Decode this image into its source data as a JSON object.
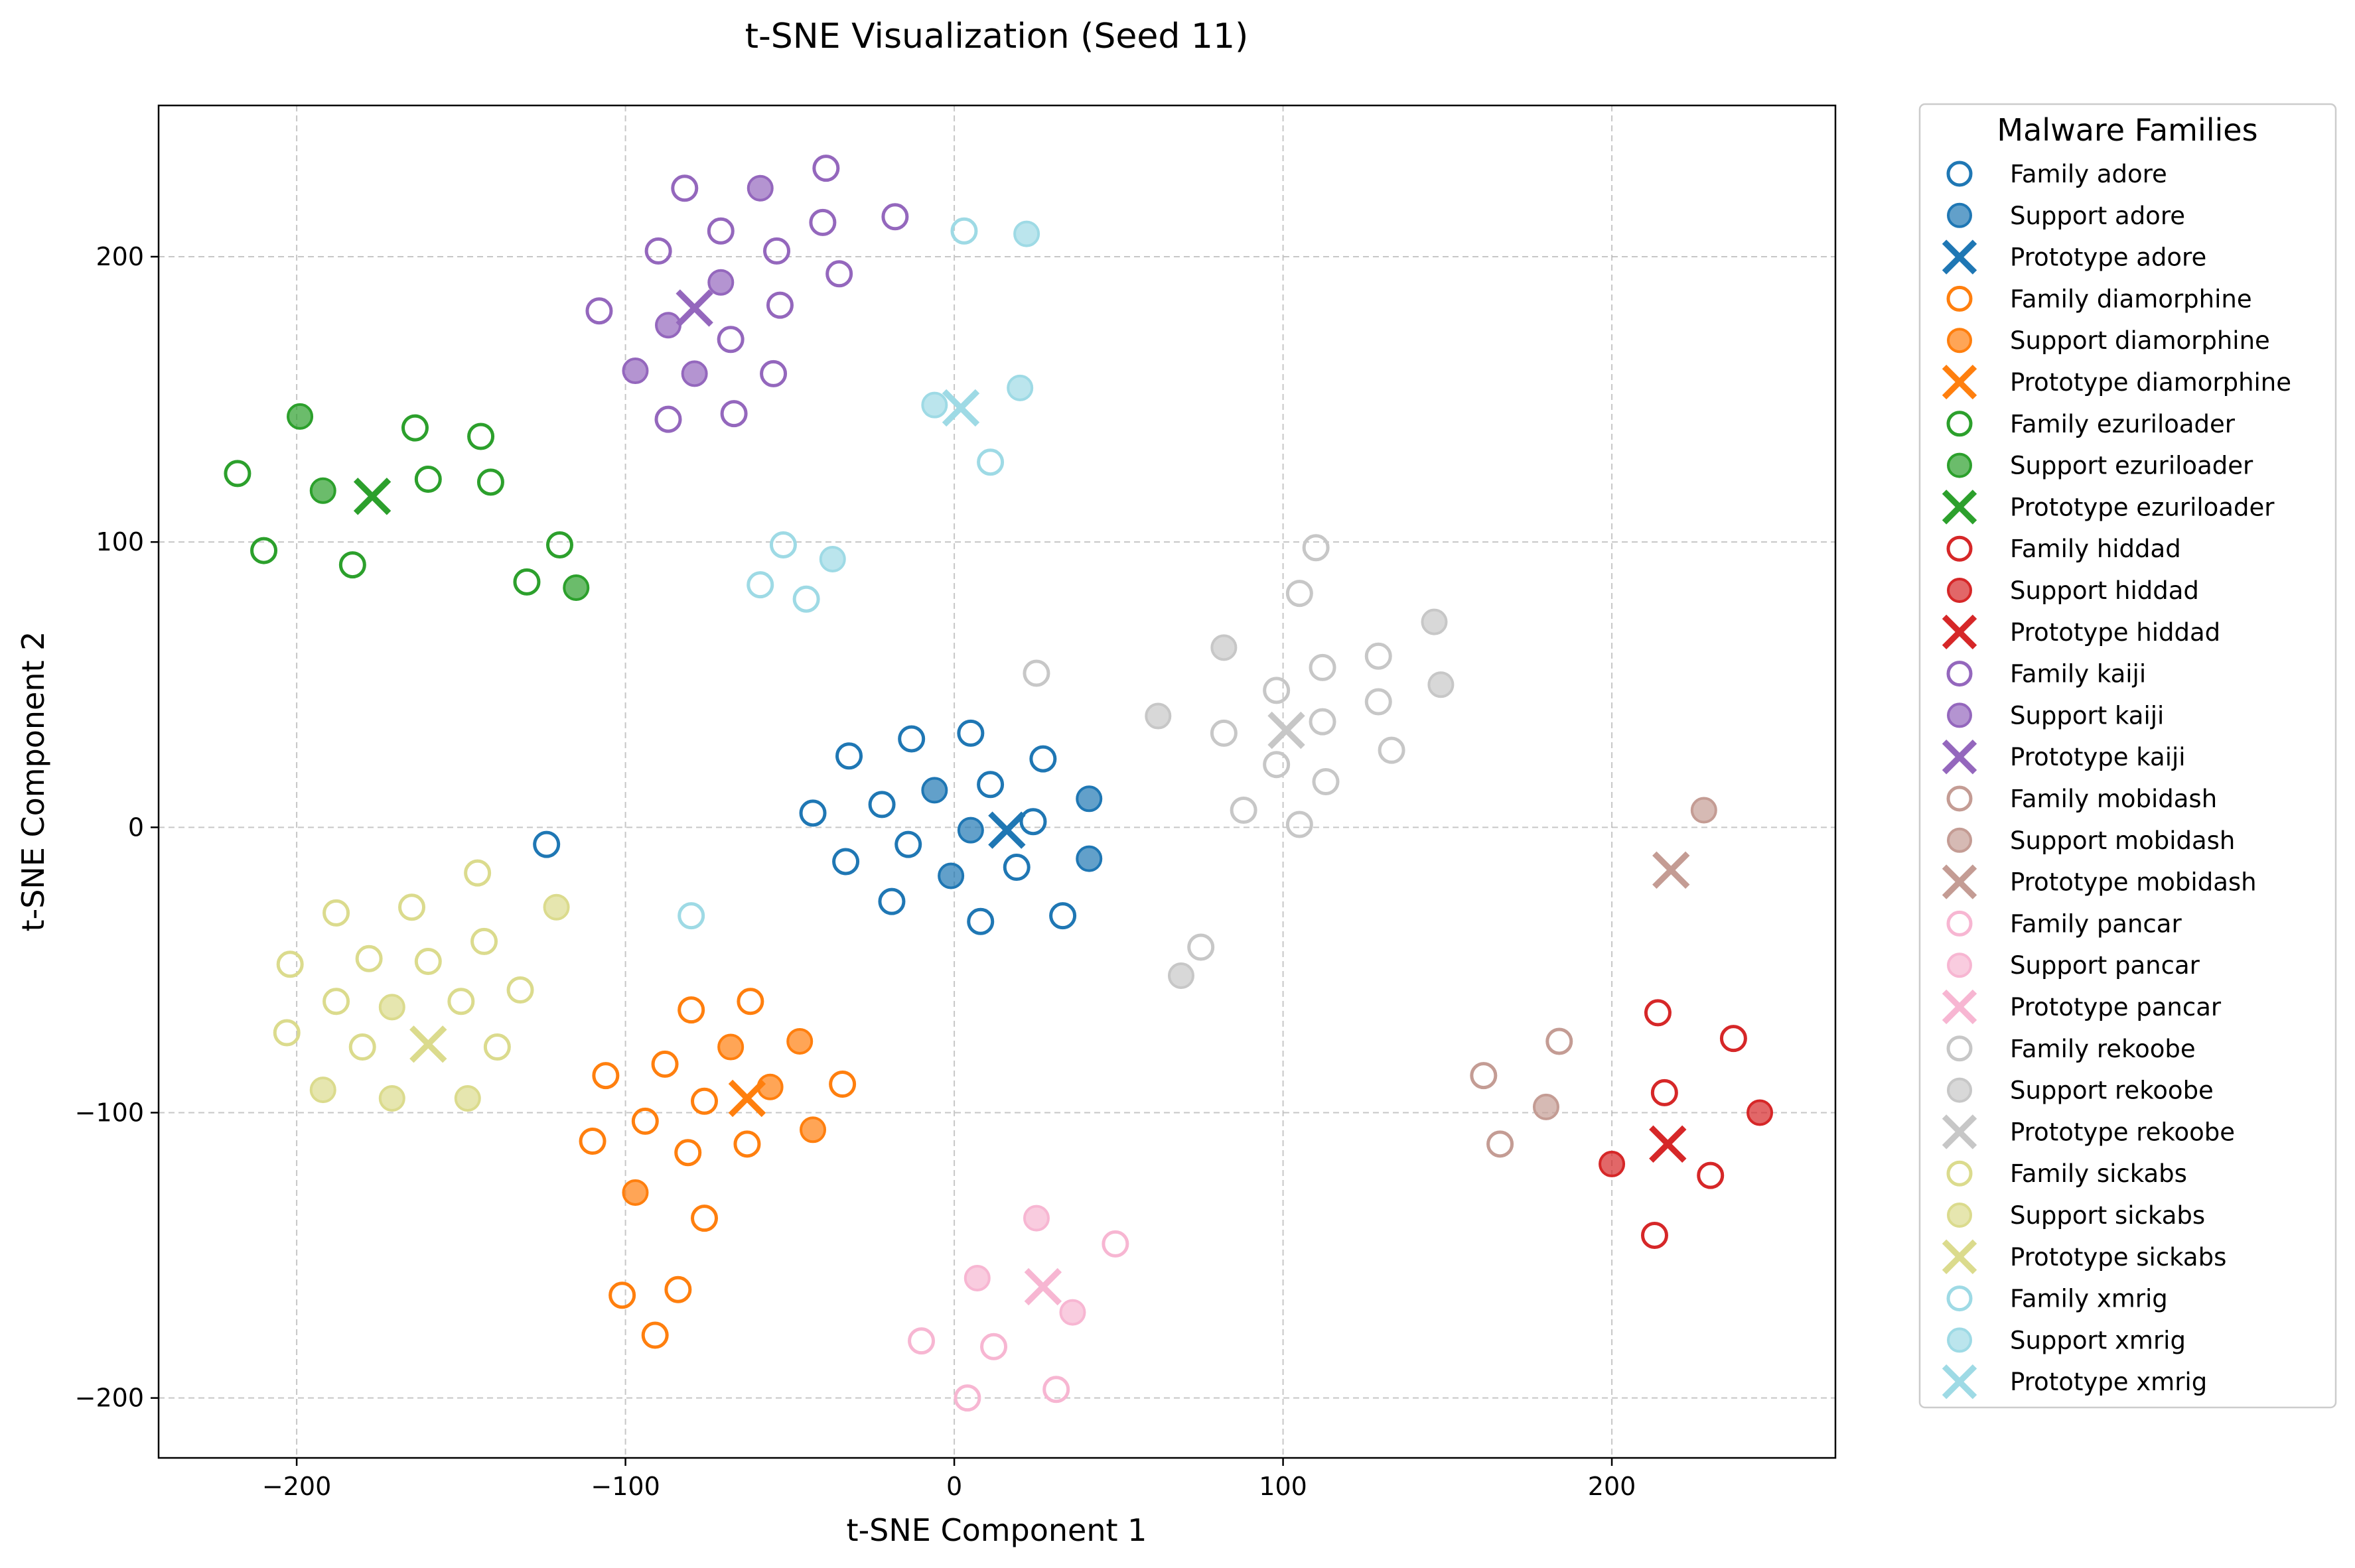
{
  "chart_data": {
    "type": "scatter",
    "title": "t-SNE Visualization (Seed 11)",
    "xlabel": "t-SNE Component 1",
    "ylabel": "t-SNE Component 2",
    "xlim": [
      -242,
      268
    ],
    "ylim": [
      -221,
      253
    ],
    "xticks": [
      -200,
      -100,
      0,
      100,
      200
    ],
    "yticks": [
      -200,
      -100,
      0,
      100,
      200
    ],
    "grid": true,
    "legend": {
      "title": "Malware Families",
      "placement": "outside-right"
    },
    "families": [
      {
        "name": "adore",
        "color": "#1f77b4",
        "labels": {
          "family": "Family adore",
          "support": "Support adore",
          "prototype": "Prototype adore"
        },
        "family_points": [
          [
            -124,
            -6
          ],
          [
            -43,
            5
          ],
          [
            -32,
            25
          ],
          [
            -33,
            -12
          ],
          [
            -22,
            8
          ],
          [
            -19,
            -26
          ],
          [
            -14,
            -6
          ],
          [
            -13,
            31
          ],
          [
            5,
            33
          ],
          [
            8,
            -33
          ],
          [
            11,
            15
          ],
          [
            19,
            -14
          ],
          [
            24,
            2
          ],
          [
            27,
            24
          ],
          [
            33,
            -31
          ]
        ],
        "support_points": [
          [
            -6,
            13
          ],
          [
            5,
            -1
          ],
          [
            -1,
            -17
          ],
          [
            41,
            10
          ],
          [
            41,
            -11
          ]
        ],
        "prototype": [
          16,
          -1
        ]
      },
      {
        "name": "diamorphine",
        "color": "#ff7f0e",
        "labels": {
          "family": "Family diamorphine",
          "support": "Support diamorphine",
          "prototype": "Prototype diamorphine"
        },
        "family_points": [
          [
            -80,
            -64
          ],
          [
            -88,
            -83
          ],
          [
            -106,
            -87
          ],
          [
            -94,
            -103
          ],
          [
            -76,
            -96
          ],
          [
            -62,
            -61
          ],
          [
            -34,
            -90
          ],
          [
            -110,
            -110
          ],
          [
            -81,
            -114
          ],
          [
            -63,
            -111
          ],
          [
            -76,
            -137
          ],
          [
            -101,
            -164
          ],
          [
            -84,
            -162
          ],
          [
            -91,
            -178
          ]
        ],
        "support_points": [
          [
            -68,
            -77
          ],
          [
            -47,
            -75
          ],
          [
            -56,
            -91
          ],
          [
            -43,
            -106
          ],
          [
            -97,
            -128
          ]
        ],
        "prototype": [
          -63,
          -95
        ]
      },
      {
        "name": "ezuriloader",
        "color": "#2ca02c",
        "labels": {
          "family": "Family ezuriloader",
          "support": "Support ezuriloader",
          "prototype": "Prototype ezuriloader"
        },
        "family_points": [
          [
            -218,
            124
          ],
          [
            -210,
            97
          ],
          [
            -183,
            92
          ],
          [
            -164,
            140
          ],
          [
            -160,
            122
          ],
          [
            -144,
            137
          ],
          [
            -141,
            121
          ],
          [
            -130,
            86
          ],
          [
            -120,
            99
          ]
        ],
        "support_points": [
          [
            -199,
            144
          ],
          [
            -192,
            118
          ],
          [
            -115,
            84
          ]
        ],
        "prototype": [
          -177,
          116
        ]
      },
      {
        "name": "hiddad",
        "color": "#d62728",
        "labels": {
          "family": "Family hiddad",
          "support": "Support hiddad",
          "prototype": "Prototype hiddad"
        },
        "family_points": [
          [
            214,
            -65
          ],
          [
            237,
            -74
          ],
          [
            216,
            -93
          ],
          [
            230,
            -122
          ],
          [
            213,
            -143
          ]
        ],
        "support_points": [
          [
            245,
            -100
          ],
          [
            200,
            -118
          ]
        ],
        "prototype": [
          217,
          -111
        ]
      },
      {
        "name": "kaiji",
        "color": "#9467bd",
        "labels": {
          "family": "Family kaiji",
          "support": "Support kaiji",
          "prototype": "Prototype kaiji"
        },
        "family_points": [
          [
            -82,
            224
          ],
          [
            -39,
            231
          ],
          [
            -71,
            209
          ],
          [
            -40,
            212
          ],
          [
            -18,
            214
          ],
          [
            -90,
            202
          ],
          [
            -54,
            202
          ],
          [
            -35,
            194
          ],
          [
            -108,
            181
          ],
          [
            -53,
            183
          ],
          [
            -68,
            171
          ],
          [
            -55,
            159
          ],
          [
            -87,
            143
          ],
          [
            -67,
            145
          ]
        ],
        "support_points": [
          [
            -59,
            224
          ],
          [
            -71,
            191
          ],
          [
            -87,
            176
          ],
          [
            -97,
            160
          ],
          [
            -79,
            159
          ]
        ],
        "prototype": [
          -79,
          182
        ]
      },
      {
        "name": "mobidash",
        "color": "#c49c94",
        "labels": {
          "family": "Family mobidash",
          "support": "Support mobidash",
          "prototype": "Prototype mobidash"
        },
        "family_points": [
          [
            161,
            -87
          ],
          [
            184,
            -75
          ],
          [
            166,
            -111
          ]
        ],
        "support_points": [
          [
            228,
            6
          ],
          [
            180,
            -98
          ]
        ],
        "prototype": [
          218,
          -15
        ]
      },
      {
        "name": "pancar",
        "color": "#f7b6d2",
        "labels": {
          "family": "Family pancar",
          "support": "Support pancar",
          "prototype": "Prototype pancar"
        },
        "family_points": [
          [
            49,
            -146
          ],
          [
            -10,
            -180
          ],
          [
            12,
            -182
          ],
          [
            4,
            -200
          ],
          [
            31,
            -197
          ]
        ],
        "support_points": [
          [
            25,
            -137
          ],
          [
            7,
            -158
          ],
          [
            36,
            -170
          ]
        ],
        "prototype": [
          27,
          -161
        ]
      },
      {
        "name": "rekoobe",
        "color": "#c7c7c7",
        "labels": {
          "family": "Family rekoobe",
          "support": "Support rekoobe",
          "prototype": "Prototype rekoobe"
        },
        "family_points": [
          [
            110,
            98
          ],
          [
            105,
            82
          ],
          [
            25,
            54
          ],
          [
            112,
            56
          ],
          [
            129,
            60
          ],
          [
            98,
            48
          ],
          [
            129,
            44
          ],
          [
            112,
            37
          ],
          [
            82,
            33
          ],
          [
            133,
            27
          ],
          [
            98,
            22
          ],
          [
            113,
            16
          ],
          [
            88,
            6
          ],
          [
            105,
            1
          ],
          [
            75,
            -42
          ]
        ],
        "support_points": [
          [
            82,
            63
          ],
          [
            146,
            72
          ],
          [
            62,
            39
          ],
          [
            148,
            50
          ],
          [
            69,
            -52
          ]
        ],
        "prototype": [
          101,
          34
        ]
      },
      {
        "name": "sickabs",
        "color": "#dbdb8d",
        "labels": {
          "family": "Family sickabs",
          "support": "Support sickabs",
          "prototype": "Prototype sickabs"
        },
        "family_points": [
          [
            -145,
            -16
          ],
          [
            -188,
            -30
          ],
          [
            -165,
            -28
          ],
          [
            -143,
            -40
          ],
          [
            -202,
            -48
          ],
          [
            -178,
            -46
          ],
          [
            -160,
            -47
          ],
          [
            -132,
            -57
          ],
          [
            -188,
            -61
          ],
          [
            -150,
            -61
          ],
          [
            -203,
            -72
          ],
          [
            -180,
            -77
          ],
          [
            -139,
            -77
          ]
        ],
        "support_points": [
          [
            -121,
            -28
          ],
          [
            -171,
            -63
          ],
          [
            -192,
            -92
          ],
          [
            -171,
            -95
          ],
          [
            -148,
            -95
          ]
        ],
        "prototype": [
          -160,
          -76
        ]
      },
      {
        "name": "xmrig",
        "color": "#9edae5",
        "labels": {
          "family": "Family xmrig",
          "support": "Support xmrig",
          "prototype": "Prototype xmrig"
        },
        "family_points": [
          [
            3,
            209
          ],
          [
            11,
            128
          ],
          [
            -52,
            99
          ],
          [
            -59,
            85
          ],
          [
            -45,
            80
          ],
          [
            -80,
            -31
          ]
        ],
        "support_points": [
          [
            22,
            208
          ],
          [
            20,
            154
          ],
          [
            -6,
            148
          ],
          [
            -37,
            94
          ]
        ],
        "prototype": [
          2,
          147
        ]
      }
    ]
  }
}
